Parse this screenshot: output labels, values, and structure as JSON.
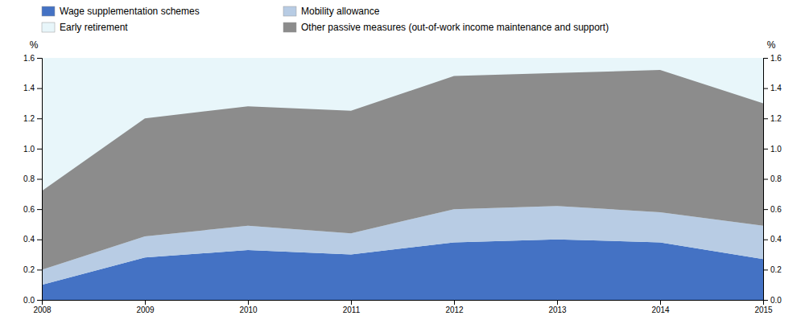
{
  "chart_data": {
    "type": "area",
    "stacked": true,
    "x": [
      2008,
      2009,
      2010,
      2011,
      2012,
      2013,
      2014,
      2015
    ],
    "series": [
      {
        "name": "Wage supplementation schemes",
        "color": "#4472C4",
        "values": [
          0.1,
          0.28,
          0.33,
          0.3,
          0.38,
          0.4,
          0.38,
          0.27
        ]
      },
      {
        "name": "Mobility allowance",
        "color": "#B8CCE4",
        "values": [
          0.1,
          0.14,
          0.16,
          0.14,
          0.22,
          0.22,
          0.2,
          0.22
        ]
      },
      {
        "name": "Early retirement",
        "color": "#E8F6FA"
      },
      {
        "name": "Other passive measures (out-of-work income maintenance and support)",
        "color": "#8C8C8C",
        "values": [
          0.52,
          0.78,
          0.79,
          0.81,
          0.88,
          0.88,
          0.94,
          0.81
        ]
      }
    ],
    "xlim": [
      2008,
      2015
    ],
    "xticks": [
      2008,
      2009,
      2010,
      2011,
      2012,
      2013,
      2014,
      2015
    ],
    "ylim": [
      0.0,
      1.6
    ],
    "yticks": [
      {
        "value": 0.0,
        "label": "0.0"
      },
      0.2,
      0.4,
      0.6,
      0.8,
      {
        "value": 1.0,
        "label": "1.0"
      },
      1.2,
      1.4,
      1.6
    ],
    "y2lim": [
      0.0,
      1.6
    ],
    "y2ticks": [
      {
        "value": 0.0,
        "label": "0.0"
      },
      0.2,
      0.4,
      0.6,
      0.8,
      {
        "value": 1.0,
        "label": "1.0"
      },
      1.2,
      1.4,
      1.6
    ],
    "ylabel": "%",
    "y2label": "%",
    "grid": false,
    "legend": "top"
  }
}
